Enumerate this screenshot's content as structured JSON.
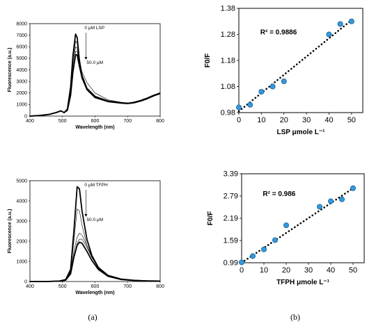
{
  "panel_labels": [
    "(a)",
    "(b)"
  ],
  "colors": {
    "marker": "#3399dd",
    "marker_edge": "#1d5f8f",
    "line": "#000000"
  },
  "chart_data": [
    {
      "type": "line",
      "xlabel": "Wavelength (nm)",
      "ylabel": "Fluorescence (a.u.)",
      "xlim": [
        400,
        800
      ],
      "ylim": [
        0,
        8000
      ],
      "x_ticks": [
        400,
        500,
        600,
        700,
        800
      ],
      "y_ticks": [
        0,
        1000,
        2000,
        3000,
        4000,
        5000,
        6000,
        7000,
        8000
      ],
      "annotations": [
        "0 μM LSP",
        "50.0 μM"
      ],
      "series": [
        {
          "style": "bold",
          "x": [
            400,
            430,
            460,
            480,
            495,
            505,
            515,
            525,
            532,
            540,
            545,
            552,
            560,
            575,
            600,
            640,
            680,
            700,
            720,
            740,
            760,
            780,
            800
          ],
          "values": [
            0,
            50,
            150,
            300,
            450,
            300,
            600,
            2500,
            5200,
            7100,
            6800,
            4800,
            3500,
            2400,
            1700,
            1300,
            1150,
            1100,
            1200,
            1350,
            1550,
            1800,
            2000
          ]
        },
        {
          "style": "thin",
          "x": [
            400,
            430,
            460,
            480,
            495,
            505,
            515,
            525,
            532,
            540,
            545,
            552,
            560,
            575,
            600,
            640,
            680,
            700,
            720,
            740,
            760,
            780,
            800
          ],
          "values": [
            0,
            50,
            150,
            300,
            450,
            300,
            550,
            2300,
            4800,
            6500,
            6300,
            4600,
            3300,
            2300,
            1650,
            1280,
            1140,
            1100,
            1180,
            1330,
            1530,
            1780,
            1980
          ]
        },
        {
          "style": "thin",
          "x": [
            400,
            430,
            460,
            480,
            495,
            505,
            515,
            525,
            532,
            540,
            545,
            552,
            560,
            575,
            600,
            640,
            680,
            700,
            720,
            740,
            760,
            780,
            800
          ],
          "values": [
            0,
            50,
            150,
            300,
            450,
            300,
            520,
            2100,
            4400,
            6000,
            5900,
            4500,
            3300,
            2400,
            1700,
            1290,
            1140,
            1100,
            1190,
            1340,
            1540,
            1790,
            1990
          ]
        },
        {
          "style": "thin",
          "x": [
            400,
            430,
            460,
            480,
            495,
            505,
            515,
            525,
            532,
            540,
            545,
            552,
            560,
            575,
            600,
            640,
            680,
            700,
            720,
            740,
            760,
            780,
            800
          ],
          "values": [
            0,
            50,
            150,
            300,
            450,
            300,
            500,
            1900,
            4000,
            5600,
            5600,
            4700,
            3800,
            2900,
            2000,
            1400,
            1200,
            1150,
            1200,
            1350,
            1550,
            1800,
            2000
          ]
        },
        {
          "style": "bold",
          "x": [
            400,
            430,
            460,
            480,
            495,
            505,
            515,
            525,
            532,
            540,
            545,
            552,
            560,
            575,
            600,
            640,
            680,
            700,
            720,
            740,
            760,
            780,
            800
          ],
          "values": [
            0,
            50,
            150,
            300,
            450,
            300,
            500,
            1800,
            3800,
            5300,
            5300,
            4300,
            3300,
            2300,
            1600,
            1250,
            1120,
            1080,
            1150,
            1300,
            1500,
            1750,
            1950
          ]
        }
      ]
    },
    {
      "type": "scatter",
      "xlabel": "LSP μmole L⁻¹",
      "ylabel": "F0/F",
      "xlim": [
        0,
        55
      ],
      "ylim": [
        0.98,
        1.38
      ],
      "x_ticks": [
        0,
        10,
        20,
        30,
        40,
        50
      ],
      "y_ticks": [
        "0.98",
        "1.08",
        "1.18",
        "1.28",
        "1.38"
      ],
      "annotation": "R² = 0.9886",
      "x": [
        0,
        5,
        10,
        15,
        20,
        40,
        45,
        50
      ],
      "values": [
        1.0,
        1.01,
        1.06,
        1.08,
        1.1,
        1.28,
        1.32,
        1.33
      ],
      "trendline": {
        "x": [
          0,
          50
        ],
        "values": [
          0.985,
          1.335
        ]
      }
    },
    {
      "type": "line",
      "xlabel": "Wavelength (nm)",
      "ylabel": "Fluorescence (a.u.)",
      "xlim": [
        400,
        800
      ],
      "ylim": [
        0,
        5000
      ],
      "x_ticks": [
        400,
        500,
        600,
        700,
        800
      ],
      "y_ticks": [
        0,
        1000,
        2000,
        3000,
        4000,
        5000
      ],
      "annotations": [
        "0 μM TFPH",
        "50.0 μM"
      ],
      "series": [
        {
          "style": "bold",
          "x": [
            400,
            450,
            490,
            510,
            525,
            535,
            545,
            552,
            560,
            575,
            590,
            610,
            640,
            680,
            720,
            760,
            800
          ],
          "values": [
            0,
            0,
            20,
            100,
            600,
            2500,
            4700,
            4600,
            3500,
            2100,
            1300,
            700,
            300,
            120,
            60,
            30,
            20
          ]
        },
        {
          "style": "thin",
          "x": [
            400,
            450,
            490,
            510,
            525,
            535,
            545,
            552,
            560,
            575,
            590,
            610,
            640,
            680,
            720,
            760,
            800
          ],
          "values": [
            0,
            0,
            20,
            90,
            500,
            2000,
            3600,
            3500,
            2800,
            1800,
            1200,
            650,
            280,
            110,
            50,
            30,
            20
          ]
        },
        {
          "style": "thin",
          "x": [
            400,
            450,
            490,
            510,
            525,
            535,
            545,
            552,
            560,
            575,
            590,
            610,
            640,
            680,
            720,
            760,
            800
          ],
          "values": [
            0,
            0,
            20,
            80,
            450,
            1500,
            2200,
            2400,
            2300,
            1800,
            1250,
            700,
            300,
            120,
            60,
            30,
            20
          ]
        },
        {
          "style": "thin",
          "x": [
            400,
            450,
            490,
            510,
            525,
            535,
            545,
            552,
            560,
            575,
            590,
            610,
            640,
            680,
            720,
            760,
            800
          ],
          "values": [
            0,
            0,
            20,
            80,
            420,
            1300,
            1900,
            2100,
            2100,
            1700,
            1200,
            680,
            290,
            110,
            50,
            30,
            20
          ]
        },
        {
          "style": "bold",
          "x": [
            400,
            450,
            490,
            510,
            525,
            535,
            545,
            552,
            560,
            575,
            590,
            610,
            640,
            680,
            720,
            760,
            800
          ],
          "values": [
            0,
            0,
            20,
            70,
            380,
            1200,
            1800,
            1950,
            1900,
            1500,
            1050,
            600,
            260,
            100,
            50,
            30,
            20
          ]
        }
      ]
    },
    {
      "type": "scatter",
      "xlabel": "TFPH μmole L⁻¹",
      "ylabel": "F0/F",
      "xlim": [
        0,
        55
      ],
      "ylim": [
        0.99,
        3.39
      ],
      "x_ticks": [
        0,
        10,
        20,
        30,
        40,
        50
      ],
      "y_ticks": [
        "0.99",
        "1.59",
        "2.19",
        "2.79",
        "3.39"
      ],
      "annotation": "R² = 0.986",
      "x": [
        0,
        5,
        10,
        15,
        20,
        35,
        40,
        45,
        50
      ],
      "values": [
        1.0,
        1.17,
        1.35,
        1.6,
        2.0,
        2.5,
        2.65,
        2.7,
        3.0
      ],
      "trendline": {
        "x": [
          0,
          50
        ],
        "values": [
          0.99,
          3.0
        ]
      }
    }
  ]
}
